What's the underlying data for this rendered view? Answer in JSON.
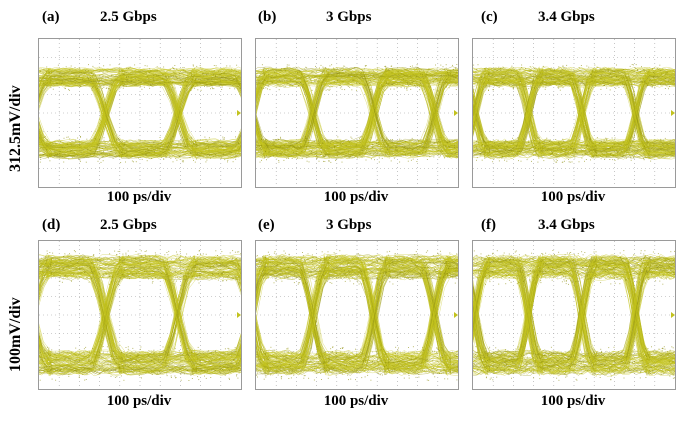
{
  "figure": {
    "row_labels": [
      "312.5mV/div",
      "100mV/div"
    ],
    "panels": [
      {
        "label": "(a)",
        "rate": "2.5 Gbps",
        "xlabel": "100 ps/div",
        "bit_rate_gbps": 2.5
      },
      {
        "label": "(b)",
        "rate": "3 Gbps",
        "xlabel": "100 ps/div",
        "bit_rate_gbps": 3.0
      },
      {
        "label": "(c)",
        "rate": "3.4 Gbps",
        "xlabel": "100 ps/div",
        "bit_rate_gbps": 3.4
      },
      {
        "label": "(d)",
        "rate": "2.5 Gbps",
        "xlabel": "100 ps/div",
        "bit_rate_gbps": 2.5
      },
      {
        "label": "(e)",
        "rate": "3 Gbps",
        "xlabel": "100 ps/div",
        "bit_rate_gbps": 3.0
      },
      {
        "label": "(f)",
        "rate": "3.4 Gbps",
        "xlabel": "100 ps/div",
        "bit_rate_gbps": 3.4
      }
    ],
    "colors": {
      "trace": "#c2c21e",
      "trace_dark": "#8f8f10",
      "grid": "#a0a0a0",
      "frame": "#9a9a9a"
    }
  }
}
